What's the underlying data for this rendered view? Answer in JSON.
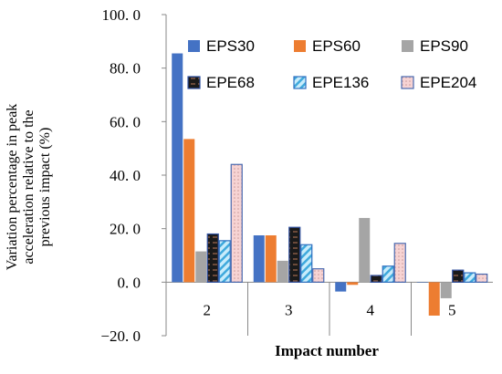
{
  "chart_data": {
    "type": "bar",
    "title": "",
    "xlabel": "Impact number",
    "ylabel": [
      "Variation percentage  in peak",
      "acceleration relative to the",
      "previous impact (%)"
    ],
    "ylim": [
      -20,
      100
    ],
    "yticks": [
      -20,
      0,
      20,
      40,
      60,
      80,
      100
    ],
    "ytick_labels": [
      "−20. 0",
      "0. 0",
      "20. 0",
      "40. 0",
      "60. 0",
      "80. 0",
      "100. 0"
    ],
    "categories": [
      "2",
      "3",
      "4",
      "5"
    ],
    "legend_position": "top-right",
    "grid": false,
    "series": [
      {
        "name": "EPS30",
        "values": [
          85.5,
          17.5,
          -3.5,
          0.0
        ],
        "color": "#4472C4",
        "pattern": "solid"
      },
      {
        "name": "EPS60",
        "values": [
          53.5,
          17.5,
          -1.0,
          -12.5
        ],
        "color": "#ED7D31",
        "pattern": "solid"
      },
      {
        "name": "EPS90",
        "values": [
          11.5,
          8.0,
          24.0,
          -6.0
        ],
        "color": "#A5A5A5",
        "pattern": "solid"
      },
      {
        "name": "EPE68",
        "values": [
          18.0,
          20.5,
          2.5,
          4.5
        ],
        "color": "#1F1F1F",
        "pattern": "brick"
      },
      {
        "name": "EPE136",
        "values": [
          15.5,
          14.0,
          6.0,
          3.5
        ],
        "color": "#9BD3F0",
        "pattern": "diagonal"
      },
      {
        "name": "EPE204",
        "values": [
          44.0,
          5.0,
          14.5,
          3.0
        ],
        "color": "#F4C2C2",
        "pattern": "dots"
      }
    ]
  }
}
